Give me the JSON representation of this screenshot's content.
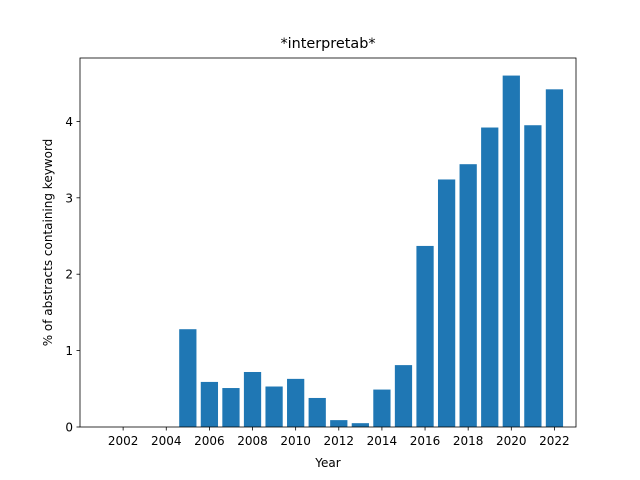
{
  "chart_data": {
    "type": "bar",
    "title": "*interpretab*",
    "xlabel": "Year",
    "ylabel": "% of abstracts containing keyword",
    "x": [
      2001,
      2002,
      2003,
      2004,
      2005,
      2006,
      2007,
      2008,
      2009,
      2010,
      2011,
      2012,
      2013,
      2014,
      2015,
      2016,
      2017,
      2018,
      2019,
      2020,
      2021,
      2022
    ],
    "values": [
      0,
      0,
      0,
      0,
      1.28,
      0.59,
      0.51,
      0.72,
      0.53,
      0.63,
      0.38,
      0.09,
      0.05,
      0.49,
      0.81,
      2.37,
      3.24,
      3.44,
      3.92,
      4.6,
      3.95,
      4.42
    ],
    "xticks": [
      2002,
      2004,
      2006,
      2008,
      2010,
      2012,
      2014,
      2016,
      2018,
      2020,
      2022
    ],
    "yticks": [
      0,
      1,
      2,
      3,
      4
    ],
    "xlim": [
      2000.0,
      2023.0
    ],
    "ylim": [
      0,
      4.83
    ],
    "bar_color": "#1f77b4",
    "grid": false,
    "legend": "none"
  }
}
